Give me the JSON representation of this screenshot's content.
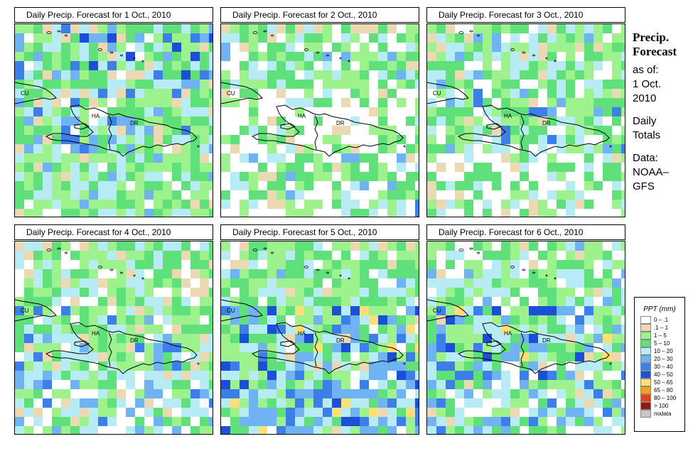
{
  "panels": [
    {
      "title": "Daily Precip. Forecast for  1 Oct., 2010",
      "seed": 11,
      "profile": "wet_north"
    },
    {
      "title": "Daily Precip. Forecast for  2 Oct., 2010",
      "seed": 23,
      "profile": "dry_center"
    },
    {
      "title": "Daily Precip. Forecast for  3 Oct., 2010",
      "seed": 37,
      "profile": "dry_south"
    },
    {
      "title": "Daily Precip. Forecast for  4 Oct., 2010",
      "seed": 41,
      "profile": "mixed"
    },
    {
      "title": "Daily Precip. Forecast for  5 Oct., 2010",
      "seed": 53,
      "profile": "wet_south"
    },
    {
      "title": "Daily Precip. Forecast for  6 Oct., 2010",
      "seed": 67,
      "profile": "wet_southeast"
    }
  ],
  "map_labels": {
    "cuba": "CU",
    "haiti": "HA",
    "dominican_republic": "DR"
  },
  "info": {
    "title_line1": "Precip.",
    "title_line2": "Forecast",
    "asof": "as of:",
    "date_line1": "1 Oct.",
    "date_line2": "2010",
    "totals_line1": "Daily",
    "totals_line2": "Totals",
    "data_line1": "Data:",
    "data_line2": "NOAA–",
    "data_line3": "GFS"
  },
  "legend": {
    "title": "PPT (mm)",
    "items": [
      {
        "label": "0 – .1",
        "color": "#ffffff"
      },
      {
        "label": ".1 – 1",
        "color": "#ead9b3"
      },
      {
        "label": "1 – 5",
        "color": "#9ef28e"
      },
      {
        "label": "5 – 10",
        "color": "#5fe07a"
      },
      {
        "label": "10 – 20",
        "color": "#b7ecf5"
      },
      {
        "label": "20 – 30",
        "color": "#6fb3f2"
      },
      {
        "label": "30 – 40",
        "color": "#3d7fe8"
      },
      {
        "label": "40 – 50",
        "color": "#1c4fd8"
      },
      {
        "label": "50 – 65",
        "color": "#fbe07a"
      },
      {
        "label": "65 – 80",
        "color": "#f6a21a"
      },
      {
        "label": "80 – 100",
        "color": "#e3401c"
      },
      {
        "label": "> 100",
        "color": "#8a1a12"
      },
      {
        "label": "nodata",
        "color": "#c8c8c8"
      }
    ]
  }
}
